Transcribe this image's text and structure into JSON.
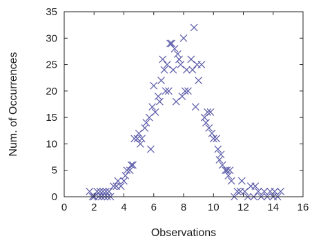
{
  "chart_data": {
    "type": "scatter",
    "xlabel": "Observations",
    "ylabel": "Num. of Occurrences",
    "xlim": [
      0,
      16
    ],
    "ylim": [
      0,
      35
    ],
    "xticks": [
      0,
      2,
      4,
      6,
      8,
      10,
      12,
      14,
      16
    ],
    "yticks": [
      0,
      5,
      10,
      15,
      20,
      25,
      30,
      35
    ],
    "grid": false,
    "marker": "x",
    "color": "#5a5aa8",
    "points": [
      [
        1.7,
        1
      ],
      [
        1.9,
        0
      ],
      [
        2.0,
        0
      ],
      [
        2.2,
        1
      ],
      [
        2.3,
        0
      ],
      [
        2.4,
        1
      ],
      [
        2.5,
        0
      ],
      [
        2.6,
        1
      ],
      [
        2.7,
        0
      ],
      [
        2.8,
        1
      ],
      [
        2.9,
        0
      ],
      [
        3.0,
        1
      ],
      [
        3.1,
        0
      ],
      [
        3.3,
        2
      ],
      [
        3.5,
        2
      ],
      [
        3.6,
        3
      ],
      [
        3.8,
        2
      ],
      [
        4.0,
        3
      ],
      [
        4.1,
        4
      ],
      [
        4.2,
        5
      ],
      [
        4.4,
        5
      ],
      [
        4.5,
        6
      ],
      [
        4.6,
        6
      ],
      [
        4.7,
        11
      ],
      [
        4.9,
        11
      ],
      [
        5.0,
        12
      ],
      [
        5.1,
        10
      ],
      [
        5.2,
        11
      ],
      [
        5.4,
        13
      ],
      [
        5.5,
        14
      ],
      [
        5.7,
        15
      ],
      [
        5.8,
        9
      ],
      [
        5.9,
        17
      ],
      [
        6.0,
        21
      ],
      [
        6.1,
        16
      ],
      [
        6.3,
        19
      ],
      [
        6.4,
        18
      ],
      [
        6.5,
        22
      ],
      [
        6.6,
        26
      ],
      [
        6.7,
        24
      ],
      [
        6.8,
        20
      ],
      [
        6.9,
        25
      ],
      [
        7.0,
        20
      ],
      [
        7.1,
        29
      ],
      [
        7.2,
        29
      ],
      [
        7.3,
        24
      ],
      [
        7.4,
        28
      ],
      [
        7.5,
        18
      ],
      [
        7.6,
        27
      ],
      [
        7.7,
        26
      ],
      [
        7.8,
        25
      ],
      [
        7.9,
        19
      ],
      [
        8.0,
        30
      ],
      [
        8.1,
        20
      ],
      [
        8.2,
        24
      ],
      [
        8.3,
        20
      ],
      [
        8.5,
        26
      ],
      [
        8.6,
        24
      ],
      [
        8.7,
        32
      ],
      [
        8.8,
        17
      ],
      [
        8.9,
        25
      ],
      [
        9.0,
        22
      ],
      [
        9.2,
        25
      ],
      [
        9.4,
        15
      ],
      [
        9.5,
        14
      ],
      [
        9.6,
        16
      ],
      [
        9.7,
        13
      ],
      [
        9.8,
        16
      ],
      [
        9.9,
        12
      ],
      [
        10.0,
        11
      ],
      [
        10.2,
        11
      ],
      [
        10.3,
        9
      ],
      [
        10.4,
        7
      ],
      [
        10.5,
        8
      ],
      [
        10.6,
        6
      ],
      [
        10.8,
        5
      ],
      [
        10.9,
        5
      ],
      [
        11.0,
        4
      ],
      [
        11.1,
        5
      ],
      [
        11.2,
        3
      ],
      [
        11.4,
        0
      ],
      [
        11.6,
        1
      ],
      [
        11.8,
        1
      ],
      [
        11.9,
        3
      ],
      [
        12.1,
        1
      ],
      [
        12.3,
        0
      ],
      [
        12.5,
        2
      ],
      [
        12.7,
        0
      ],
      [
        12.8,
        2
      ],
      [
        13.0,
        1
      ],
      [
        13.2,
        0
      ],
      [
        13.4,
        1
      ],
      [
        13.6,
        0
      ],
      [
        13.8,
        1
      ],
      [
        14.0,
        0
      ],
      [
        14.1,
        1
      ],
      [
        14.3,
        0
      ],
      [
        14.5,
        1
      ]
    ]
  }
}
